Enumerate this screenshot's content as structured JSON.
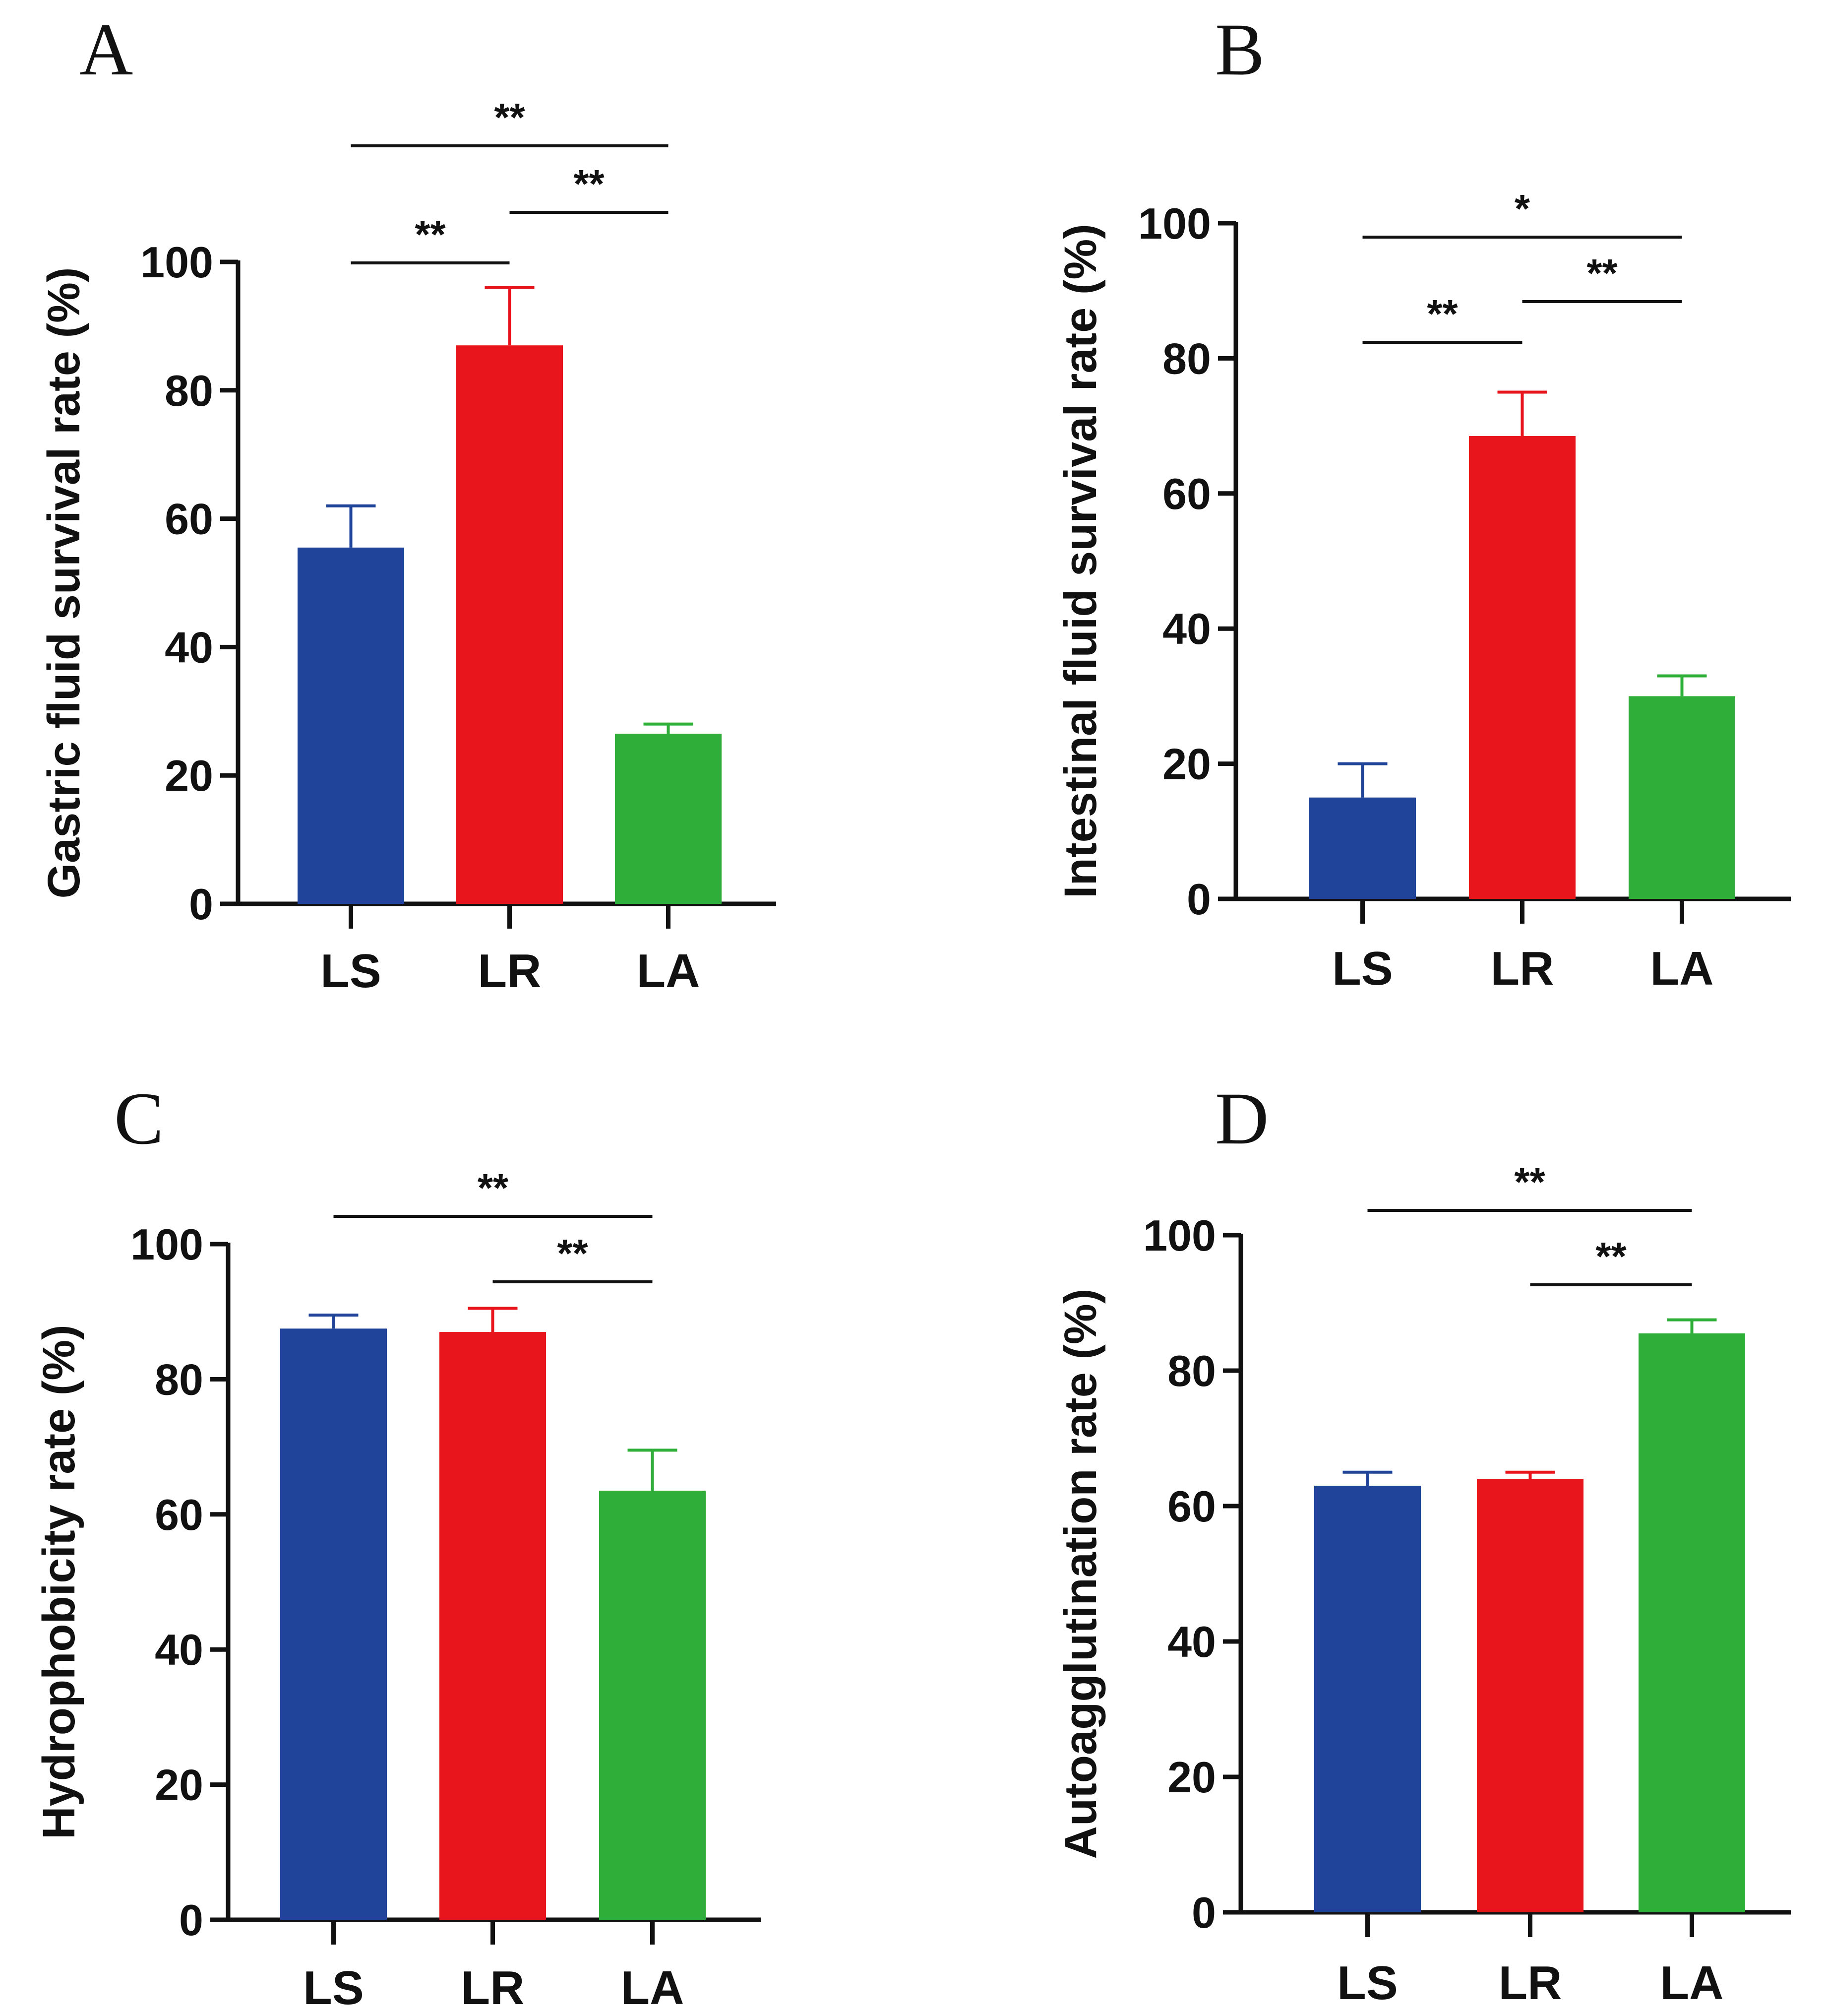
{
  "chart_data": [
    {
      "type": "bar",
      "panel": "A",
      "categories": [
        "LS",
        "LR",
        "LA"
      ],
      "values": [
        55.5,
        87,
        26.5
      ],
      "errors": [
        6.5,
        9,
        1.5
      ],
      "colors": [
        "#1f449a",
        "#e8161c",
        "#2faf3a"
      ],
      "ylabel": "Gastric fluid survival rate (%)",
      "ylim": [
        0,
        100
      ],
      "yticks": [
        "0",
        "20",
        "40",
        "60",
        "80",
        "100"
      ],
      "significance": [
        {
          "from": 0,
          "to": 1,
          "label": "**"
        },
        {
          "from": 1,
          "to": 2,
          "label": "**"
        },
        {
          "from": 0,
          "to": 2,
          "label": "**"
        }
      ]
    },
    {
      "type": "bar",
      "panel": "B",
      "categories": [
        "LS",
        "LR",
        "LA"
      ],
      "values": [
        15,
        68.5,
        30
      ],
      "errors": [
        5,
        6.5,
        3
      ],
      "colors": [
        "#1f449a",
        "#e8161c",
        "#2faf3a"
      ],
      "ylabel": "Intestinal fluid survival rate (%)",
      "ylim": [
        0,
        100
      ],
      "yticks": [
        "0",
        "20",
        "40",
        "60",
        "80",
        "100"
      ],
      "significance": [
        {
          "from": 0,
          "to": 1,
          "label": "**"
        },
        {
          "from": 1,
          "to": 2,
          "label": "**"
        },
        {
          "from": 0,
          "to": 2,
          "label": "*"
        }
      ]
    },
    {
      "type": "bar",
      "panel": "C",
      "categories": [
        "LS",
        "LR",
        "LA"
      ],
      "values": [
        87.5,
        87,
        63.5
      ],
      "errors": [
        2,
        3.5,
        6
      ],
      "colors": [
        "#1f449a",
        "#e8161c",
        "#2faf3a"
      ],
      "ylabel": "Hydrophobicity rate (%)",
      "ylim": [
        0,
        100
      ],
      "yticks": [
        "0",
        "20",
        "40",
        "60",
        "80",
        "100"
      ],
      "significance": [
        {
          "from": 1,
          "to": 2,
          "label": "**"
        },
        {
          "from": 0,
          "to": 2,
          "label": "**"
        }
      ]
    },
    {
      "type": "bar",
      "panel": "D",
      "categories": [
        "LS",
        "LR",
        "LA"
      ],
      "values": [
        63,
        64,
        85.5
      ],
      "errors": [
        2,
        1,
        2
      ],
      "colors": [
        "#1f449a",
        "#e8161c",
        "#2faf3a"
      ],
      "ylabel": "Autoagglutination rate (%)",
      "ylim": [
        0,
        100
      ],
      "yticks": [
        "0",
        "20",
        "40",
        "60",
        "80",
        "100"
      ],
      "significance": [
        {
          "from": 1,
          "to": 2,
          "label": "**"
        },
        {
          "from": 0,
          "to": 2,
          "label": "**"
        }
      ]
    }
  ]
}
